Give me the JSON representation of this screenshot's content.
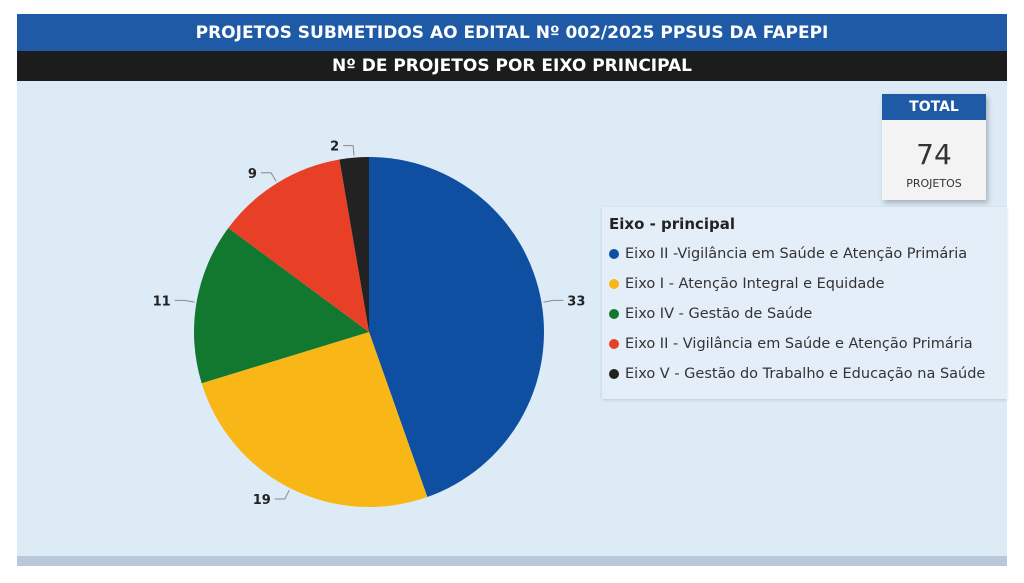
{
  "header": {
    "title": "PROJETOS SUBMETIDOS AO EDITAL Nº 002/2025 PPSUS DA FAPEPI",
    "subtitle": "Nº DE PROJETOS POR EIXO PRINCIPAL"
  },
  "total_card": {
    "label": "TOTAL",
    "value": "74",
    "unit": "PROJETOS"
  },
  "chart_data": {
    "type": "pie",
    "title": "Nº DE PROJETOS POR EIXO PRINCIPAL",
    "legend_title": "Eixo - principal",
    "legend_position": "right",
    "slices": [
      {
        "label": "Eixo II -Vigilância em Saúde e Atenção Primária",
        "value": 33,
        "color": "#0e4fa1"
      },
      {
        "label": "Eixo I - Atenção Integral e Equidade",
        "value": 19,
        "color": "#f8b716"
      },
      {
        "label": "Eixo IV - Gestão de Saúde",
        "value": 11,
        "color": "#12772f"
      },
      {
        "label": "Eixo II - Vigilância em Saúde e Atenção Primária",
        "value": 9,
        "color": "#e84026"
      },
      {
        "label": "Eixo V - Gestão do Trabalho e Educação na Saúde",
        "value": 2,
        "color": "#222222"
      }
    ]
  }
}
